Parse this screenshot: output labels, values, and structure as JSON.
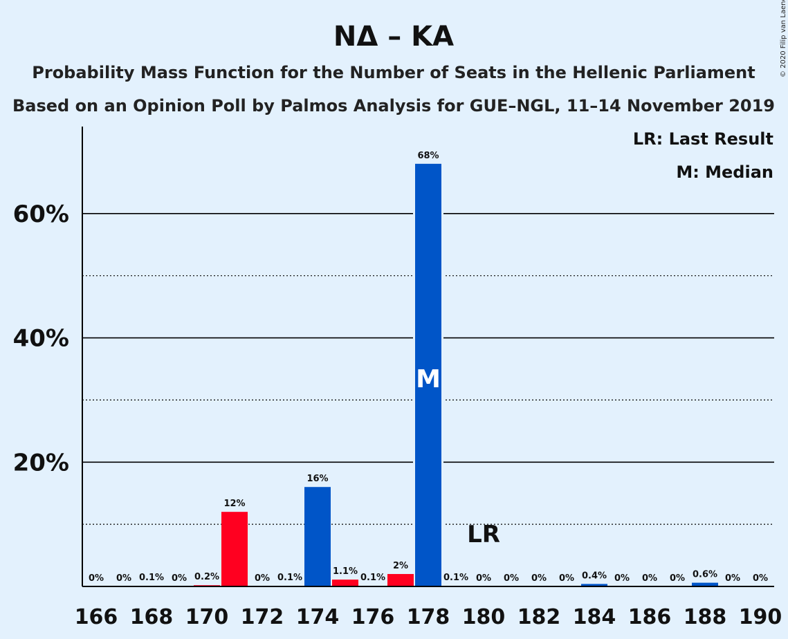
{
  "colors": {
    "background": "#e3f1fd",
    "blue": "#0055c8",
    "red": "#ff0020"
  },
  "legend": {
    "last_result": "LR: Last Result",
    "median": "M: Median"
  },
  "copyright": "© 2020 Filip van Laenen",
  "chart_data": {
    "type": "bar",
    "title": "ΝΔ – ΚΑ",
    "subtitle": "Probability Mass Function for the Number of Seats in the Hellenic Parliament",
    "subtitle2": "Based on an Opinion Poll by Palmos Analysis for GUE–NGL, 11–14 November 2019",
    "xlabel": "",
    "ylabel": "",
    "ylim": [
      0,
      74
    ],
    "yticks": [
      20,
      40,
      60
    ],
    "ytick_labels": [
      "20%",
      "40%",
      "60%"
    ],
    "minor_gridlines": [
      10,
      30,
      50
    ],
    "x": [
      166,
      167,
      168,
      169,
      170,
      171,
      172,
      173,
      174,
      175,
      176,
      177,
      178,
      179,
      180,
      181,
      182,
      183,
      184,
      185,
      186,
      187,
      188,
      189,
      190
    ],
    "xtick_values": [
      166,
      168,
      170,
      172,
      174,
      176,
      178,
      180,
      182,
      184,
      186,
      188,
      190
    ],
    "values": [
      0,
      0,
      0.1,
      0,
      0.2,
      12,
      0,
      0.1,
      16,
      1.1,
      0.1,
      2,
      68,
      0.1,
      0,
      0,
      0,
      0,
      0.4,
      0,
      0,
      0,
      0.6,
      0,
      0
    ],
    "labels": [
      "0%",
      "0%",
      "0.1%",
      "0%",
      "0.2%",
      "12%",
      "0%",
      "0.1%",
      "16%",
      "1.1%",
      "0.1%",
      "2%",
      "68%",
      "0.1%",
      "0%",
      "0%",
      "0%",
      "0%",
      "0.4%",
      "0%",
      "0%",
      "0%",
      "0.6%",
      "0%",
      "0%"
    ],
    "bar_colors": [
      "blue",
      "blue",
      "blue",
      "blue",
      "red",
      "red",
      "red",
      "red",
      "blue",
      "red",
      "red",
      "red",
      "blue",
      "blue",
      "blue",
      "blue",
      "blue",
      "blue",
      "blue",
      "blue",
      "blue",
      "blue",
      "blue",
      "blue",
      "blue"
    ],
    "median": {
      "x": 178,
      "label": "M"
    },
    "last_result": {
      "x": 180,
      "label": "LR"
    },
    "grid": true,
    "legend_position": "top-right"
  }
}
